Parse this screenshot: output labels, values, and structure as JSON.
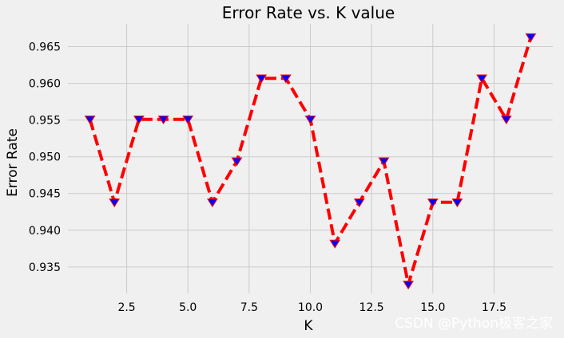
{
  "chart_data": {
    "type": "line",
    "title": "Error Rate vs. K value",
    "xlabel": "K",
    "ylabel": "Error Rate",
    "x": [
      1,
      2,
      3,
      4,
      5,
      6,
      7,
      8,
      9,
      10,
      11,
      12,
      13,
      14,
      15,
      16,
      17,
      18,
      19
    ],
    "series": [
      {
        "values": [
          0.9551,
          0.9438,
          0.9551,
          0.9551,
          0.9551,
          0.9438,
          0.9494,
          0.9607,
          0.9607,
          0.9551,
          0.9382,
          0.9438,
          0.9494,
          0.9326,
          0.9438,
          0.9438,
          0.9607,
          0.9551,
          0.9663
        ],
        "line_color": "#ff0000",
        "line_style": "dashed",
        "marker": "triangle-down",
        "marker_color": "#0000ff"
      }
    ],
    "xlim": [
      0.1,
      19.9
    ],
    "ylim": [
      0.9314,
      0.9681
    ],
    "xticks": [
      2.5,
      5.0,
      7.5,
      10.0,
      12.5,
      15.0,
      17.5
    ],
    "xtick_labels": [
      "2.5",
      "5.0",
      "7.5",
      "10.0",
      "12.5",
      "15.0",
      "17.5"
    ],
    "yticks": [
      0.935,
      0.94,
      0.945,
      0.95,
      0.955,
      0.96,
      0.965
    ],
    "ytick_labels": [
      "0.935",
      "0.940",
      "0.945",
      "0.950",
      "0.955",
      "0.960",
      "0.965"
    ],
    "grid": true,
    "background": "#f0f0f0",
    "grid_color": "#cbcbcb"
  },
  "watermark": "CSDN @Python极客之家"
}
